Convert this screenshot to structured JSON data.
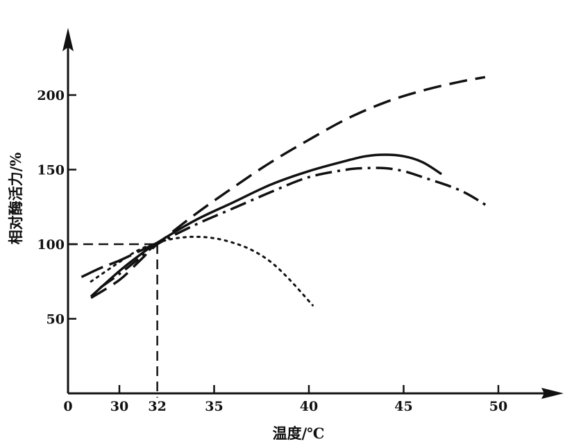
{
  "chart_data": {
    "type": "line",
    "title": "",
    "xlabel": "温度/℃",
    "ylabel": "相对酶活力/%",
    "x_ticks": [
      30,
      32,
      35,
      40,
      45,
      50
    ],
    "x_origin_label": "0",
    "y_ticks": [
      50,
      100,
      150,
      200
    ],
    "xlim": [
      27.5,
      52
    ],
    "ylim": [
      0,
      230
    ],
    "grid": false,
    "legend": "none",
    "reference": {
      "x": 32,
      "y": 100
    },
    "series": [
      {
        "style": "dashed",
        "x": [
          28.5,
          30,
          31,
          32,
          34,
          36,
          38,
          40,
          42,
          44,
          46,
          48,
          49.3
        ],
        "y": [
          64,
          76,
          88,
          100,
          120,
          138,
          155,
          170,
          184,
          195,
          203,
          209,
          212
        ]
      },
      {
        "style": "solid",
        "x": [
          28.5,
          30,
          31,
          32,
          34,
          36,
          38,
          40,
          42,
          43,
          44,
          45,
          46,
          47
        ],
        "y": [
          65,
          82,
          92,
          101,
          116,
          128,
          140,
          149,
          156,
          159,
          160,
          159,
          155,
          147
        ]
      },
      {
        "style": "dash-dot",
        "x": [
          29,
          30,
          31,
          32,
          34,
          36,
          38,
          40,
          42,
          43,
          44,
          45,
          46,
          48,
          49.5
        ],
        "y": [
          71,
          80,
          90,
          100,
          113,
          124,
          135,
          145,
          150,
          151,
          151,
          149,
          145,
          136,
          125
        ]
      },
      {
        "style": "dotted",
        "x": [
          28.5,
          30,
          31,
          32,
          33,
          34,
          35,
          36,
          37,
          38,
          39,
          40.2
        ],
        "y": [
          75,
          88,
          96,
          101,
          104,
          105,
          104,
          101,
          96,
          88,
          76,
          59
        ]
      },
      {
        "style": "long-dash",
        "x": [
          28,
          29,
          30,
          31,
          32
        ],
        "y": [
          78,
          84,
          89,
          95,
          101
        ]
      }
    ]
  }
}
